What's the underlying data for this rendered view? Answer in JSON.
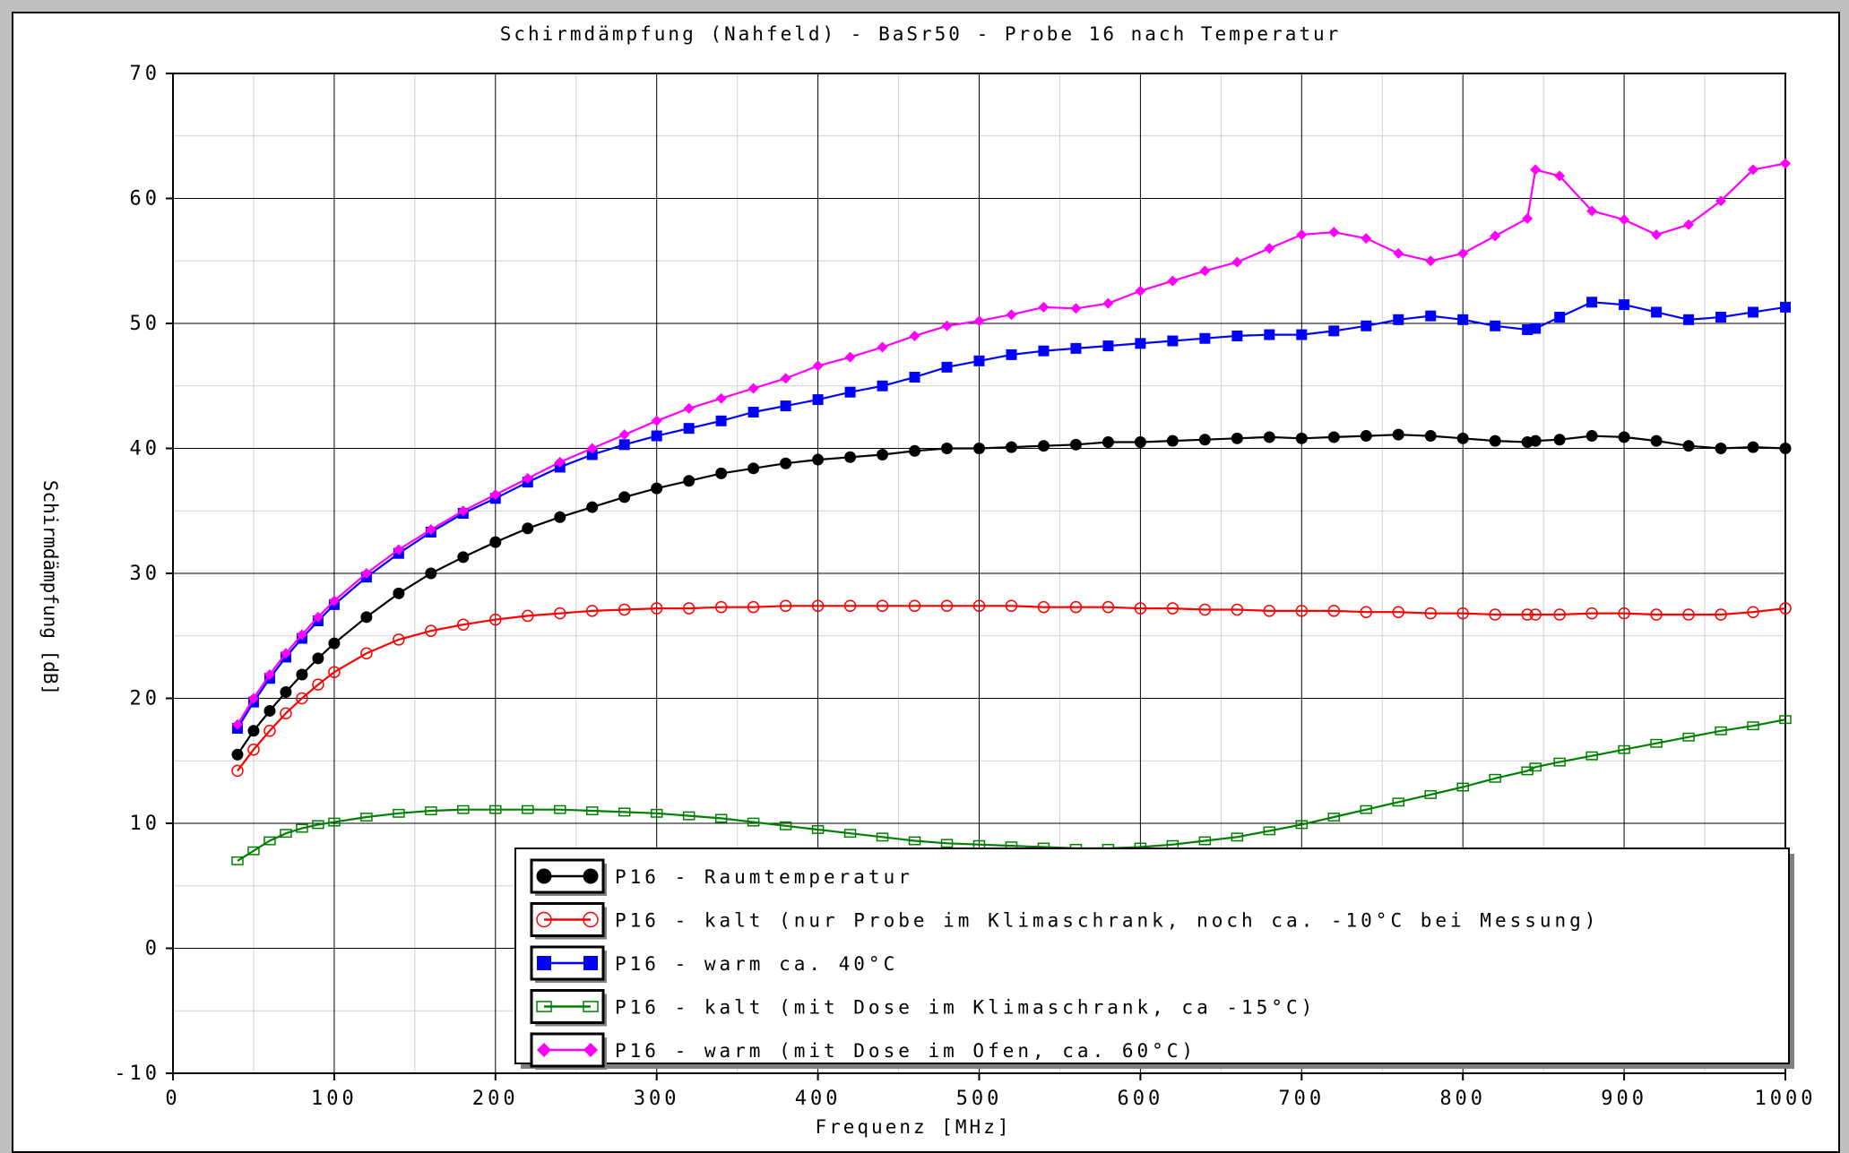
{
  "chart_data": {
    "type": "line",
    "title": "Schirmdämpfung (Nahfeld) - BaSr50 - Probe 16 nach Temperatur",
    "xlabel": "Frequenz [MHz]",
    "ylabel": "Schirmdämpfung [dB]",
    "xlim": [
      0,
      1000
    ],
    "ylim": [
      -10,
      70
    ],
    "x_ticks": [
      0,
      100,
      200,
      300,
      400,
      500,
      600,
      700,
      800,
      900,
      1000
    ],
    "y_ticks": [
      -10,
      0,
      10,
      20,
      30,
      40,
      50,
      60,
      70
    ],
    "grid": true,
    "legend_position": "bottom-center",
    "x": [
      40,
      50,
      60,
      70,
      80,
      90,
      100,
      120,
      140,
      160,
      180,
      200,
      220,
      240,
      260,
      280,
      300,
      320,
      340,
      360,
      380,
      400,
      420,
      440,
      460,
      480,
      500,
      520,
      540,
      560,
      580,
      600,
      620,
      640,
      660,
      680,
      700,
      720,
      740,
      760,
      780,
      800,
      820,
      840,
      845,
      860,
      880,
      900,
      920,
      940,
      960,
      980,
      1000
    ],
    "series": [
      {
        "name": "P16 - Raumtemperatur",
        "color": "#000000",
        "marker": "circle-filled",
        "values": [
          15.5,
          17.4,
          19.0,
          20.5,
          21.9,
          23.2,
          24.4,
          26.5,
          28.4,
          30.0,
          31.3,
          32.5,
          33.6,
          34.5,
          35.3,
          36.1,
          36.8,
          37.4,
          38.0,
          38.4,
          38.8,
          39.1,
          39.3,
          39.5,
          39.8,
          40.0,
          40.0,
          40.1,
          40.2,
          40.3,
          40.5,
          40.5,
          40.6,
          40.7,
          40.8,
          40.9,
          40.8,
          40.9,
          41.0,
          41.1,
          41.0,
          40.8,
          40.6,
          40.5,
          40.6,
          40.7,
          41.0,
          40.9,
          40.6,
          40.2,
          40.0,
          40.1,
          40.0
        ]
      },
      {
        "name": "P16 - kalt (nur Probe im Klimaschrank, noch ca. -10°C bei Messung)",
        "color": "#ff0000",
        "marker": "circle-open",
        "values": [
          14.2,
          15.9,
          17.4,
          18.8,
          20.0,
          21.1,
          22.1,
          23.6,
          24.7,
          25.4,
          25.9,
          26.3,
          26.6,
          26.8,
          27.0,
          27.1,
          27.2,
          27.2,
          27.3,
          27.3,
          27.4,
          27.4,
          27.4,
          27.4,
          27.4,
          27.4,
          27.4,
          27.4,
          27.3,
          27.3,
          27.3,
          27.2,
          27.2,
          27.1,
          27.1,
          27.0,
          27.0,
          27.0,
          26.9,
          26.9,
          26.8,
          26.8,
          26.7,
          26.7,
          26.7,
          26.7,
          26.8,
          26.8,
          26.7,
          26.7,
          26.7,
          26.9,
          27.2
        ]
      },
      {
        "name": "P16 - warm ca. 40°C",
        "color": "#0000ff",
        "marker": "square-filled",
        "values": [
          17.6,
          19.7,
          21.6,
          23.3,
          24.8,
          26.2,
          27.5,
          29.7,
          31.6,
          33.3,
          34.8,
          36.0,
          37.3,
          38.5,
          39.5,
          40.3,
          41.0,
          41.6,
          42.2,
          42.9,
          43.4,
          43.9,
          44.5,
          45.0,
          45.7,
          46.5,
          47.0,
          47.5,
          47.8,
          48.0,
          48.2,
          48.4,
          48.6,
          48.8,
          49.0,
          49.1,
          49.1,
          49.4,
          49.8,
          50.3,
          50.6,
          50.3,
          49.8,
          49.5,
          49.6,
          50.5,
          51.7,
          51.5,
          50.9,
          50.3,
          50.5,
          50.9,
          51.3
        ]
      },
      {
        "name": "P16 - kalt (mit Dose im Klimaschrank, ca -15°C)",
        "color": "#008000",
        "marker": "square-open",
        "values": [
          7.0,
          7.8,
          8.6,
          9.2,
          9.6,
          9.9,
          10.1,
          10.5,
          10.8,
          11.0,
          11.1,
          11.1,
          11.1,
          11.1,
          11.0,
          10.9,
          10.8,
          10.6,
          10.4,
          10.1,
          9.8,
          9.5,
          9.2,
          8.9,
          8.6,
          8.4,
          8.3,
          8.2,
          8.1,
          8.0,
          8.0,
          8.1,
          8.3,
          8.6,
          8.9,
          9.4,
          9.9,
          10.5,
          11.1,
          11.7,
          12.3,
          12.9,
          13.6,
          14.2,
          14.5,
          14.9,
          15.4,
          15.9,
          16.4,
          16.9,
          17.4,
          17.8,
          18.3
        ]
      },
      {
        "name": "P16 - warm (mit Dose im Ofen, ca. 60°C)",
        "color": "#ff00ff",
        "marker": "diamond-filled",
        "values": [
          17.9,
          20.0,
          21.9,
          23.6,
          25.1,
          26.5,
          27.8,
          30.0,
          31.9,
          33.5,
          35.0,
          36.3,
          37.6,
          38.9,
          40.0,
          41.1,
          42.2,
          43.2,
          44.0,
          44.8,
          45.6,
          46.6,
          47.3,
          48.1,
          49.0,
          49.8,
          50.2,
          50.7,
          51.3,
          51.2,
          51.6,
          52.6,
          53.4,
          54.2,
          54.9,
          56.0,
          57.1,
          57.3,
          56.8,
          55.6,
          55.0,
          55.6,
          57.0,
          58.4,
          62.3,
          61.8,
          59.0,
          58.3,
          57.1,
          57.9,
          59.8,
          62.3,
          62.8
        ]
      }
    ]
  }
}
